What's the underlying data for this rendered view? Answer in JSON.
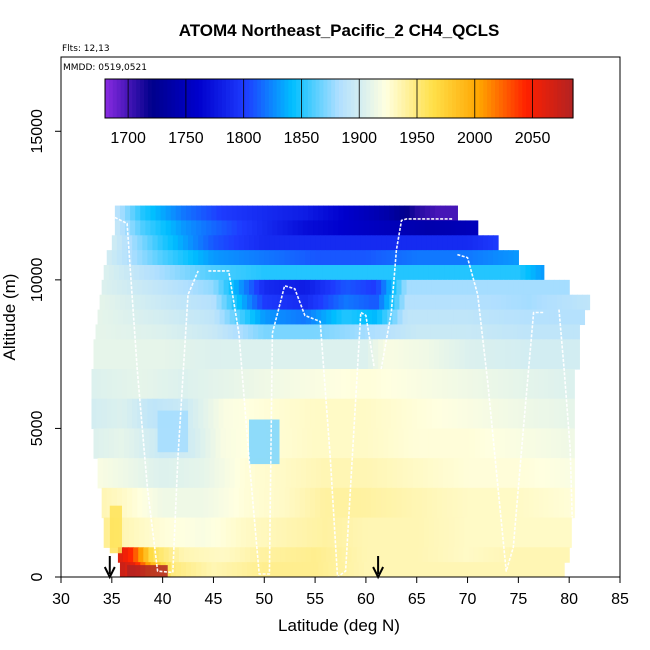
{
  "chart_data": {
    "type": "heatmap",
    "title": "ATOM4 Northeast_Pacific_2 CH4_QCLS",
    "notes": [
      "Flts: 12,13",
      "MMDD: 0519,0521"
    ],
    "xlabel": "Latitude (deg N)",
    "ylabel": "Altitude (m)",
    "xlim": [
      30,
      85
    ],
    "ylim": [
      0,
      17500
    ],
    "x_ticks": [
      30,
      35,
      40,
      45,
      50,
      55,
      60,
      65,
      70,
      75,
      80,
      85
    ],
    "y_ticks": [
      0,
      5000,
      10000,
      15000
    ],
    "grid": false,
    "colorbar": {
      "placement": "top-inside",
      "range": [
        1680,
        2085
      ],
      "ticks": [
        1700,
        1750,
        1800,
        1850,
        1900,
        1950,
        2000,
        2050
      ],
      "colors": [
        "#8A2BE2",
        "#00008B",
        "#0000CD",
        "#1E3CFF",
        "#00BFFF",
        "#B0DFFF",
        "#FFFFE0",
        "#FFE04A",
        "#FFA500",
        "#FF2000",
        "#B22222"
      ]
    },
    "markers": [
      {
        "type": "arrow-down",
        "x": 34.8
      },
      {
        "type": "arrow-down",
        "x": 61.2
      }
    ],
    "bands": [
      {
        "y0": 12000,
        "y1": 12500,
        "x0": 35.3,
        "x1": 69.0,
        "values": [
          [
            35.3,
            1890
          ],
          [
            38,
            1850
          ],
          [
            42,
            1820
          ],
          [
            46,
            1800
          ],
          [
            50,
            1790
          ],
          [
            54,
            1780
          ],
          [
            58,
            1760
          ],
          [
            62,
            1740
          ],
          [
            65,
            1710
          ],
          [
            67,
            1700
          ],
          [
            69,
            1700
          ]
        ]
      },
      {
        "y0": 11500,
        "y1": 12000,
        "x0": 35.3,
        "x1": 71.0,
        "values": [
          [
            35.3,
            1895
          ],
          [
            38,
            1860
          ],
          [
            42,
            1830
          ],
          [
            46,
            1810
          ],
          [
            50,
            1790
          ],
          [
            54,
            1770
          ],
          [
            58,
            1760
          ],
          [
            62,
            1750
          ],
          [
            66,
            1740
          ],
          [
            71,
            1750
          ]
        ]
      },
      {
        "y0": 11000,
        "y1": 11500,
        "x0": 35.0,
        "x1": 73.0,
        "values": [
          [
            35,
            1900
          ],
          [
            40,
            1850
          ],
          [
            45,
            1810
          ],
          [
            50,
            1790
          ],
          [
            55,
            1790
          ],
          [
            60,
            1790
          ],
          [
            65,
            1790
          ],
          [
            70,
            1790
          ],
          [
            73,
            1800
          ]
        ]
      },
      {
        "y0": 10500,
        "y1": 11000,
        "x0": 34.5,
        "x1": 75.0,
        "values": [
          [
            34.5,
            1900
          ],
          [
            40,
            1860
          ],
          [
            45,
            1830
          ],
          [
            50,
            1820
          ],
          [
            55,
            1810
          ],
          [
            60,
            1810
          ],
          [
            65,
            1820
          ],
          [
            70,
            1820
          ],
          [
            75,
            1830
          ]
        ]
      },
      {
        "y0": 10000,
        "y1": 10500,
        "x0": 34.2,
        "x1": 77.5,
        "values": [
          [
            34.2,
            1905
          ],
          [
            40,
            1880
          ],
          [
            45,
            1860
          ],
          [
            50,
            1850
          ],
          [
            55,
            1850
          ],
          [
            60,
            1850
          ],
          [
            65,
            1850
          ],
          [
            70,
            1850
          ],
          [
            75,
            1850
          ],
          [
            77.5,
            1830
          ]
        ]
      },
      {
        "y0": 9500,
        "y1": 10000,
        "x0": 34.0,
        "x1": 80.0,
        "values": [
          [
            34,
            1905
          ],
          [
            40,
            1890
          ],
          [
            45,
            1875
          ],
          [
            50,
            1790
          ],
          [
            54,
            1780
          ],
          [
            58,
            1810
          ],
          [
            61,
            1800
          ],
          [
            64,
            1880
          ],
          [
            70,
            1880
          ],
          [
            75,
            1880
          ],
          [
            80,
            1880
          ]
        ]
      },
      {
        "y0": 9000,
        "y1": 9500,
        "x0": 33.8,
        "x1": 82.0,
        "values": [
          [
            33.8,
            1910
          ],
          [
            40,
            1895
          ],
          [
            45,
            1885
          ],
          [
            50,
            1800
          ],
          [
            54,
            1790
          ],
          [
            58,
            1820
          ],
          [
            61,
            1810
          ],
          [
            64,
            1885
          ],
          [
            70,
            1885
          ],
          [
            76,
            1880
          ],
          [
            82,
            1890
          ]
        ]
      },
      {
        "y0": 8500,
        "y1": 9000,
        "x0": 33.6,
        "x1": 81.5,
        "values": [
          [
            33.6,
            1910
          ],
          [
            40,
            1900
          ],
          [
            45,
            1890
          ],
          [
            50,
            1830
          ],
          [
            54,
            1820
          ],
          [
            58,
            1850
          ],
          [
            61,
            1840
          ],
          [
            64,
            1890
          ],
          [
            70,
            1890
          ],
          [
            76,
            1885
          ],
          [
            81.5,
            1885
          ]
        ]
      },
      {
        "y0": 8000,
        "y1": 8500,
        "x0": 33.4,
        "x1": 81.0,
        "values": [
          [
            33.4,
            1910
          ],
          [
            40,
            1905
          ],
          [
            45,
            1895
          ],
          [
            50,
            1870
          ],
          [
            55,
            1870
          ],
          [
            60,
            1880
          ],
          [
            65,
            1895
          ],
          [
            70,
            1895
          ],
          [
            76,
            1890
          ],
          [
            81,
            1890
          ]
        ]
      },
      {
        "y0": 7000,
        "y1": 8000,
        "x0": 33.2,
        "x1": 81.0,
        "values": [
          [
            33.2,
            1910
          ],
          [
            40,
            1910
          ],
          [
            45,
            1905
          ],
          [
            50,
            1905
          ],
          [
            55,
            1905
          ],
          [
            60,
            1905
          ],
          [
            62,
            1920
          ],
          [
            66,
            1915
          ],
          [
            70,
            1905
          ],
          [
            76,
            1900
          ],
          [
            81,
            1900
          ]
        ]
      },
      {
        "y0": 6000,
        "y1": 7000,
        "x0": 33.0,
        "x1": 80.5,
        "values": [
          [
            33,
            1905
          ],
          [
            38,
            1910
          ],
          [
            42,
            1905
          ],
          [
            46,
            1910
          ],
          [
            50,
            1915
          ],
          [
            55,
            1920
          ],
          [
            60,
            1925
          ],
          [
            65,
            1920
          ],
          [
            70,
            1915
          ],
          [
            75,
            1910
          ],
          [
            80.5,
            1905
          ]
        ]
      },
      {
        "y0": 5000,
        "y1": 6000,
        "x0": 33.0,
        "x1": 80.5,
        "values": [
          [
            33,
            1900
          ],
          [
            36,
            1905
          ],
          [
            39,
            1890
          ],
          [
            42,
            1895
          ],
          [
            46,
            1920
          ],
          [
            50,
            1925
          ],
          [
            55,
            1930
          ],
          [
            60,
            1930
          ],
          [
            65,
            1925
          ],
          [
            70,
            1920
          ],
          [
            75,
            1915
          ],
          [
            80.5,
            1910
          ]
        ]
      },
      {
        "y0": 4000,
        "y1": 5000,
        "x0": 33.2,
        "x1": 80.5,
        "values": [
          [
            33.2,
            1905
          ],
          [
            36,
            1910
          ],
          [
            40,
            1895
          ],
          [
            43,
            1900
          ],
          [
            46,
            1920
          ],
          [
            50,
            1925
          ],
          [
            55,
            1930
          ],
          [
            60,
            1930
          ],
          [
            65,
            1925
          ],
          [
            70,
            1925
          ],
          [
            75,
            1920
          ],
          [
            80.5,
            1915
          ]
        ]
      },
      {
        "y0": 3000,
        "y1": 4000,
        "x0": 33.6,
        "x1": 80.5,
        "values": [
          [
            33.6,
            1920
          ],
          [
            36,
            1915
          ],
          [
            40,
            1905
          ],
          [
            44,
            1910
          ],
          [
            48,
            1925
          ],
          [
            52,
            1930
          ],
          [
            56,
            1935
          ],
          [
            60,
            1935
          ],
          [
            65,
            1930
          ],
          [
            70,
            1925
          ],
          [
            75,
            1925
          ],
          [
            80.5,
            1920
          ]
        ]
      },
      {
        "y0": 2000,
        "y1": 3000,
        "x0": 34.0,
        "x1": 80.5,
        "values": [
          [
            34,
            1935
          ],
          [
            36,
            1930
          ],
          [
            40,
            1915
          ],
          [
            44,
            1915
          ],
          [
            48,
            1925
          ],
          [
            52,
            1930
          ],
          [
            56,
            1940
          ],
          [
            60,
            1940
          ],
          [
            65,
            1935
          ],
          [
            70,
            1930
          ],
          [
            75,
            1930
          ],
          [
            80.5,
            1925
          ]
        ]
      },
      {
        "y0": 1000,
        "y1": 2000,
        "x0": 34.2,
        "x1": 80.2,
        "values": [
          [
            34.2,
            1945
          ],
          [
            36,
            1935
          ],
          [
            40,
            1925
          ],
          [
            44,
            1920
          ],
          [
            48,
            1930
          ],
          [
            52,
            1935
          ],
          [
            56,
            1940
          ],
          [
            60,
            1935
          ],
          [
            65,
            1935
          ],
          [
            70,
            1930
          ],
          [
            75,
            1930
          ],
          [
            80.2,
            1930
          ]
        ]
      },
      {
        "y0": 500,
        "y1": 1000,
        "x0": 35.6,
        "x1": 80.0,
        "values": [
          [
            35.6,
            2065
          ],
          [
            37,
            2040
          ],
          [
            39,
            1960
          ],
          [
            42,
            1935
          ],
          [
            46,
            1930
          ],
          [
            50,
            1940
          ],
          [
            55,
            1945
          ],
          [
            60,
            1935
          ],
          [
            65,
            1935
          ],
          [
            70,
            1930
          ],
          [
            75,
            1935
          ],
          [
            80,
            1935
          ]
        ]
      },
      {
        "y0": 0,
        "y1": 500,
        "x0": 35.8,
        "x1": 79.5,
        "values": [
          [
            35.8,
            2075
          ],
          [
            37,
            2060
          ],
          [
            39,
            1990
          ],
          [
            41,
            1950
          ],
          [
            45,
            1935
          ],
          [
            50,
            1945
          ],
          [
            55,
            1945
          ],
          [
            60,
            1935
          ],
          [
            65,
            1935
          ],
          [
            70,
            1935
          ],
          [
            75,
            1935
          ],
          [
            79.5,
            1935
          ]
        ]
      }
    ],
    "blobs": [
      {
        "x0": 48.5,
        "x1": 51.5,
        "y0": 3800,
        "y1": 5300,
        "value": 1870
      },
      {
        "x0": 39.5,
        "x1": 42.5,
        "y0": 4200,
        "y1": 5600,
        "value": 1880
      },
      {
        "x0": 34.8,
        "x1": 36.0,
        "y0": 800,
        "y1": 2400,
        "value": 1960
      },
      {
        "x0": 36.5,
        "x1": 40.5,
        "y0": 0,
        "y1": 400,
        "value": 2085
      }
    ],
    "tracks": [
      {
        "points": [
          [
            35.3,
            12100
          ],
          [
            36.5,
            11900
          ],
          [
            37.5,
            7000
          ],
          [
            38.5,
            3000
          ],
          [
            39.5,
            200
          ],
          [
            41,
            150
          ],
          [
            41.5,
            4000
          ],
          [
            42.5,
            9500
          ],
          [
            43.5,
            10300
          ]
        ]
      },
      {
        "points": [
          [
            44.5,
            10300
          ],
          [
            46.5,
            10300
          ],
          [
            47.5,
            8200
          ],
          [
            48.5,
            4000
          ],
          [
            49.5,
            100
          ],
          [
            50.5,
            100
          ],
          [
            50.8,
            8200
          ],
          [
            52,
            9800
          ],
          [
            53,
            9700
          ],
          [
            54,
            8800
          ],
          [
            55.5,
            8600
          ],
          [
            56.5,
            4000
          ],
          [
            57.2,
            0
          ],
          [
            58,
            200
          ],
          [
            59.5,
            8900
          ],
          [
            60,
            8800
          ],
          [
            60.8,
            7100
          ]
        ]
      },
      {
        "points": [
          [
            61.5,
            7000
          ],
          [
            62.5,
            8900
          ],
          [
            63,
            11000
          ],
          [
            63.5,
            12000
          ],
          [
            64,
            12050
          ],
          [
            66,
            12050
          ],
          [
            68.5,
            12050
          ]
        ]
      },
      {
        "points": [
          [
            69,
            10850
          ],
          [
            70,
            10750
          ],
          [
            71,
            9500
          ],
          [
            72,
            6500
          ],
          [
            73,
            3000
          ],
          [
            73.8,
            200
          ],
          [
            74.5,
            1000
          ],
          [
            75.5,
            5000
          ],
          [
            76.5,
            8900
          ],
          [
            77.5,
            8900
          ]
        ]
      },
      {
        "points": [
          [
            79,
            9000
          ],
          [
            79.5,
            7000
          ],
          [
            80.1,
            4300
          ],
          [
            80.3,
            2000
          ]
        ]
      }
    ]
  }
}
